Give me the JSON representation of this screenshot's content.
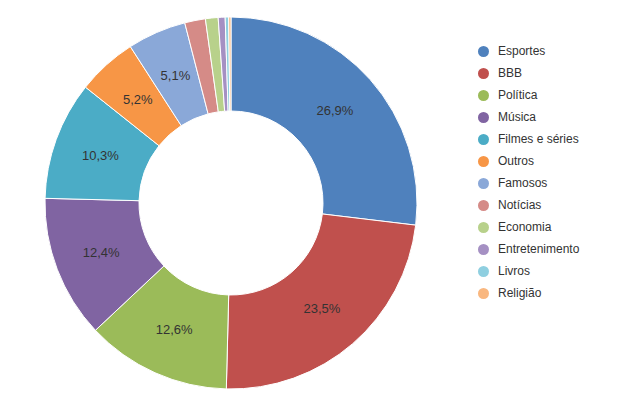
{
  "chart_data": {
    "type": "donut",
    "categories": [
      "Esportes",
      "BBB",
      "Política",
      "Música",
      "Filmes e séries",
      "Outros",
      "Famosos",
      "Notícias",
      "Economia",
      "Entretenimento",
      "Livros",
      "Religião"
    ],
    "values": [
      26.9,
      23.5,
      12.6,
      12.4,
      10.3,
      5.2,
      5.1,
      1.8,
      1.1,
      0.6,
      0.3,
      0.2
    ],
    "value_labels": [
      "26,9%",
      "23,5%",
      "12,6%",
      "12,4%",
      "10,3%",
      "5,2%",
      "5,1%",
      null,
      null,
      null,
      null,
      null
    ],
    "colors": [
      "#4f81bd",
      "#c0504d",
      "#9bbb59",
      "#8064a2",
      "#4bacc6",
      "#f79646",
      "#8aa8d8",
      "#d58b87",
      "#b8d18b",
      "#a590c3",
      "#8fcfe0",
      "#f9b77f"
    ],
    "data_labels": true,
    "legend": "right"
  }
}
